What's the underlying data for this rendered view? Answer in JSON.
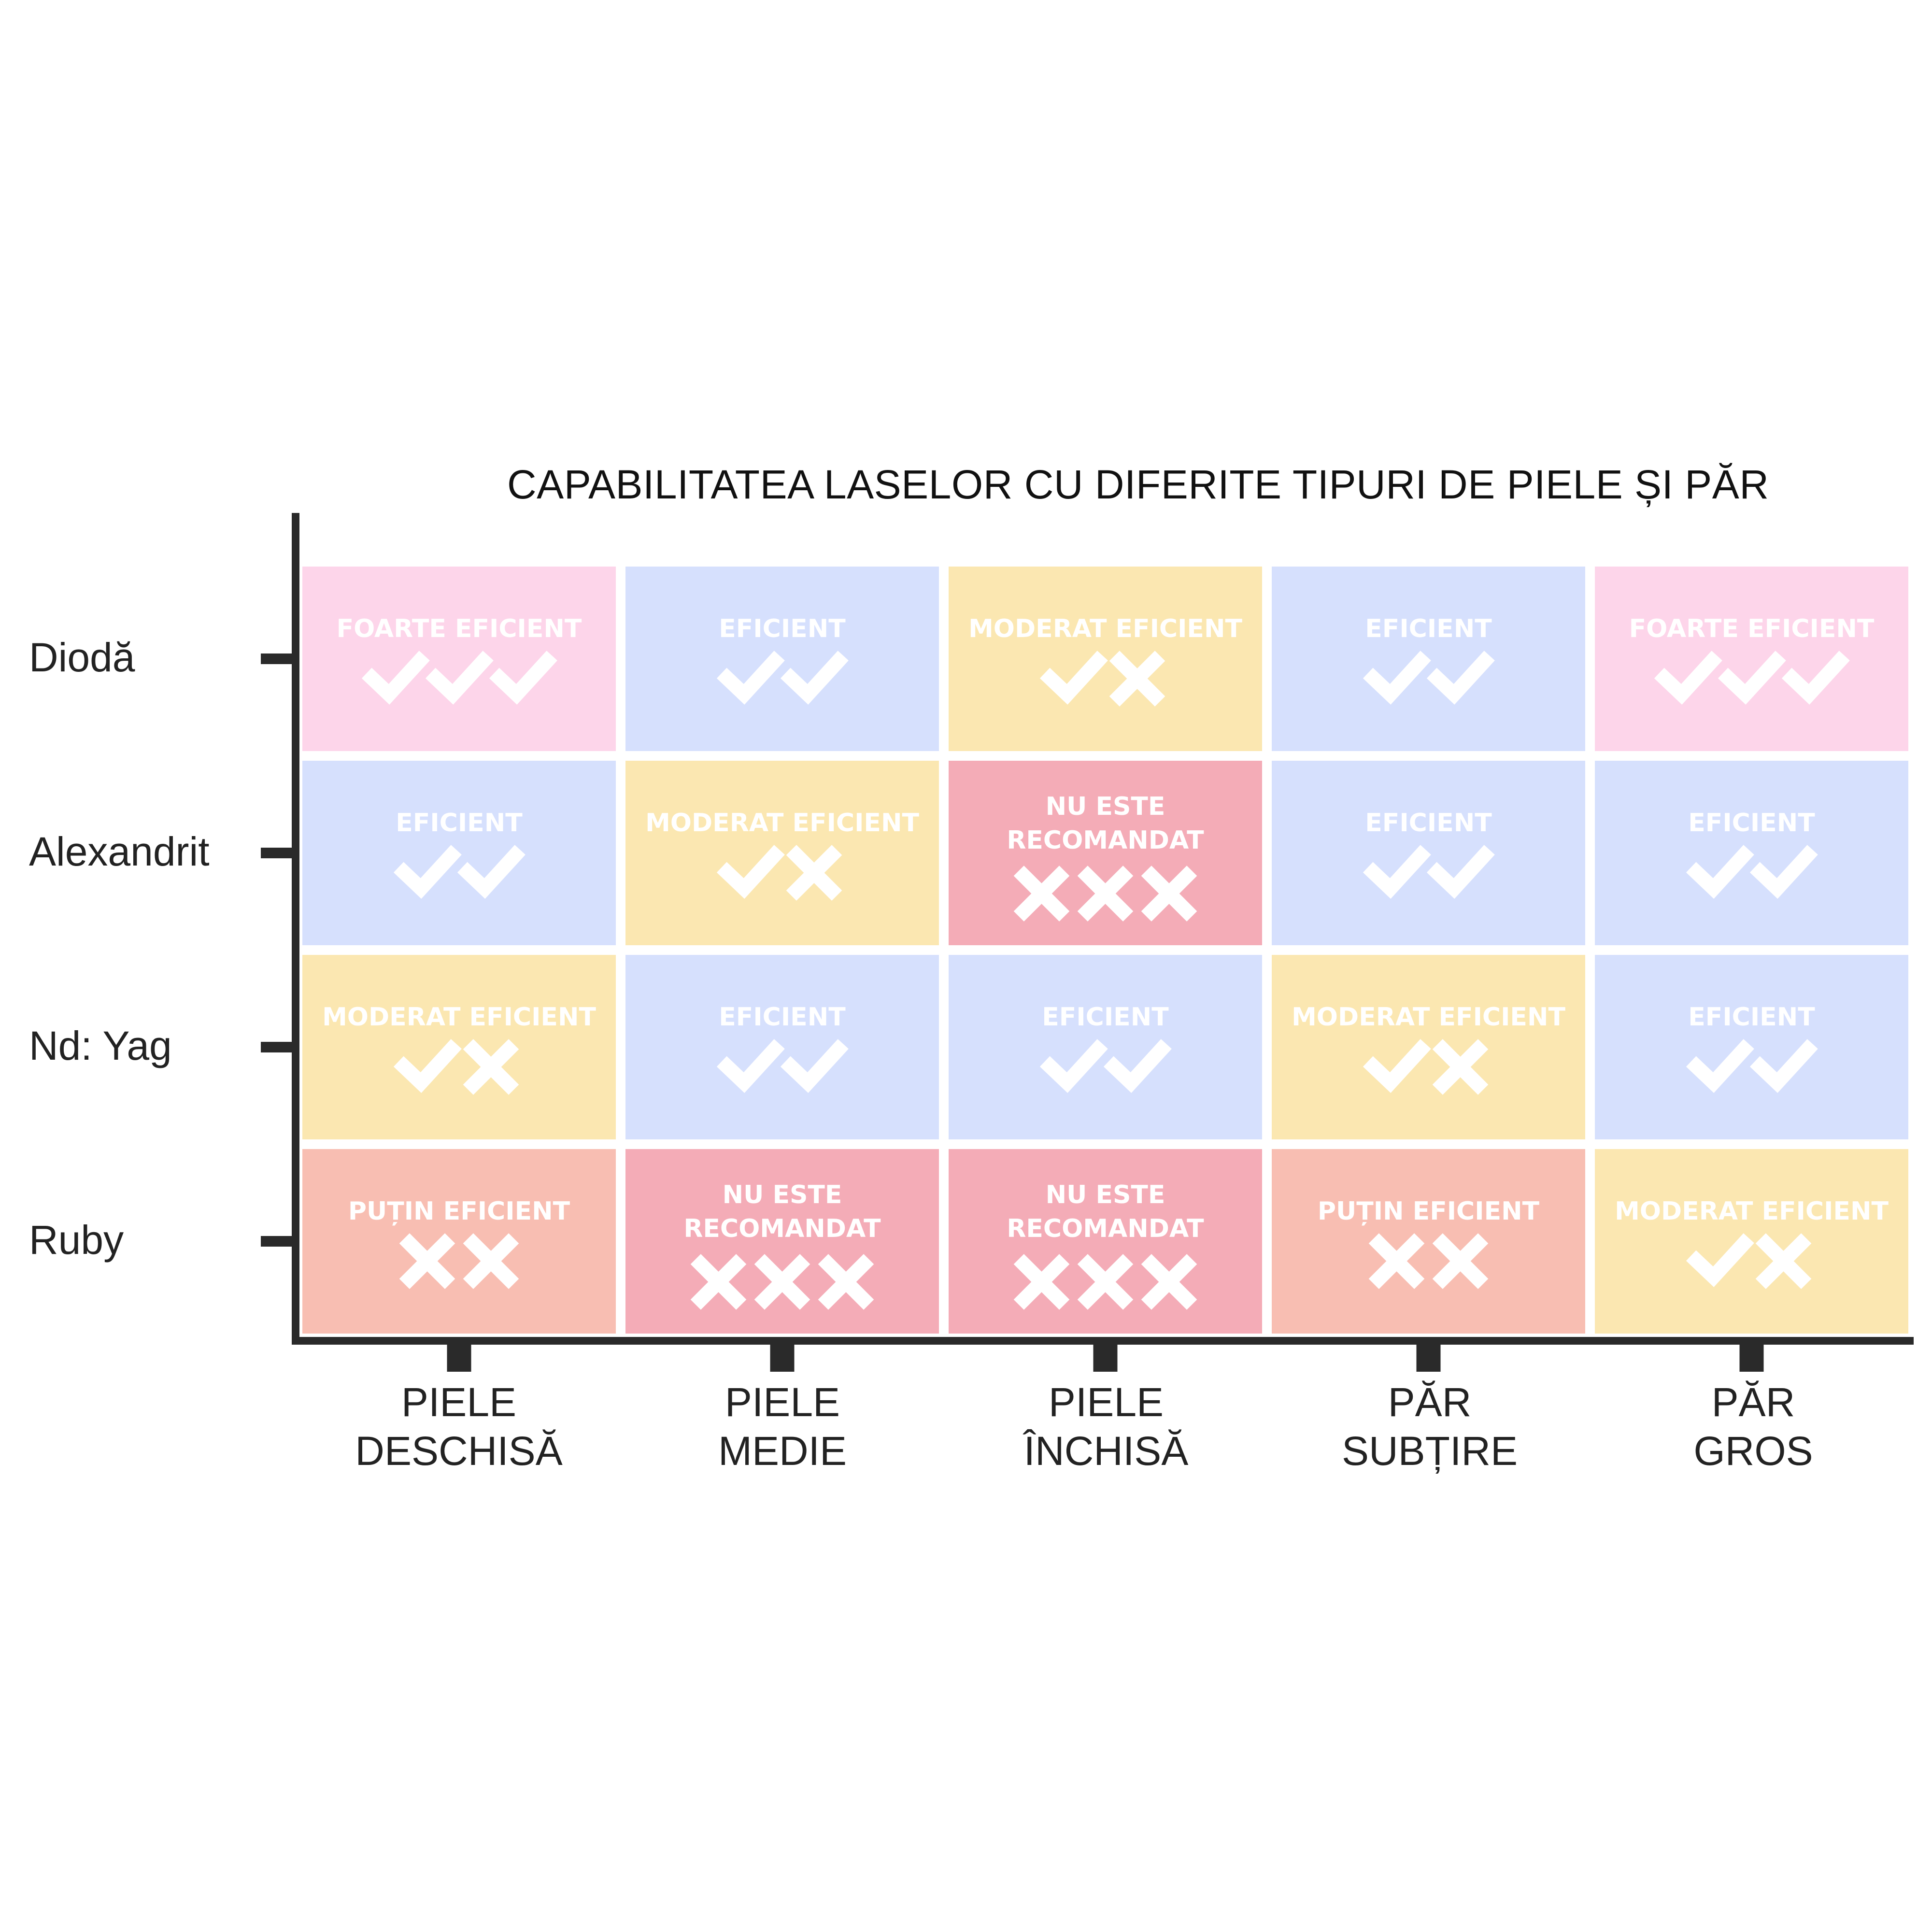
{
  "chart_data": {
    "type": "heatmap",
    "title": "CAPABILITATEA LASELOR CU DIFERITE TIPURI DE PIELE ȘI PĂR",
    "rows": [
      "Diodă",
      "Alexandrit",
      "Nd: Yag",
      "Ruby"
    ],
    "columns": [
      [
        "PIELE",
        "DESCHISĂ"
      ],
      [
        "PIELE",
        "MEDIE"
      ],
      [
        "PIELE",
        "ÎNCHISĂ"
      ],
      [
        "PĂR",
        "SUBȚIRE"
      ],
      [
        "PĂR",
        "GROS"
      ]
    ],
    "levels": {
      "foarte": {
        "label": [
          "FOARTE EFICIENT"
        ],
        "marks": [
          "check",
          "check",
          "check"
        ],
        "color": "#fdd5ea"
      },
      "eficient": {
        "label": [
          "EFICIENT"
        ],
        "marks": [
          "check",
          "check"
        ],
        "color": "#d6e0fd"
      },
      "moderat": {
        "label": [
          "MODERAT EFICIENT"
        ],
        "marks": [
          "check",
          "cross"
        ],
        "color": "#fbe7b1"
      },
      "putin": {
        "label": [
          "PUȚIN EFICIENT"
        ],
        "marks": [
          "cross",
          "cross"
        ],
        "color": "#f8beb2"
      },
      "nu": {
        "label": [
          "NU ESTE",
          "RECOMANDAT"
        ],
        "marks": [
          "cross",
          "cross",
          "cross"
        ],
        "color": "#f4acb7"
      }
    },
    "cells": [
      [
        "foarte",
        "eficient",
        "moderat",
        "eficient",
        "foarte"
      ],
      [
        "eficient",
        "moderat",
        "nu",
        "eficient",
        "eficient"
      ],
      [
        "moderat",
        "eficient",
        "eficient",
        "moderat",
        "eficient"
      ],
      [
        "putin",
        "nu",
        "nu",
        "putin",
        "moderat"
      ]
    ],
    "axis_color": "#2a2a2a",
    "cell_text_color": "#ffffff"
  }
}
